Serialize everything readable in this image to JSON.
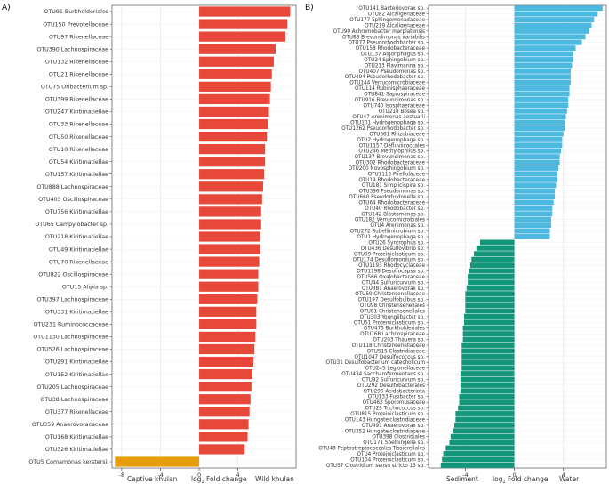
{
  "chart_data": [
    {
      "panel": "A)",
      "type": "bar",
      "orientation": "horizontal",
      "xlabel_left": "Captive khulan",
      "xlabel_mid_prefix": "log",
      "xlabel_mid_sub": "2",
      "xlabel_mid_suffix": " Fold change",
      "xlabel_right": "Wild khulan",
      "xlim": [
        -9,
        10
      ],
      "xticks": [
        -8,
        -4,
        0,
        4
      ],
      "grid": true,
      "colors": {
        "positive": "#e8483a",
        "negative": "#e89e0c"
      },
      "categories": [
        "OTU91 Burkholderiales",
        "OTU150 Prevotellaceae",
        "OTU97 Rikenellaceae",
        "OTU390 Lachnospiraceae",
        "OTU132 Rikenellaceae",
        "OTU21 Rikenellaceae",
        "OTU75 Oribacterium sp.",
        "OTU399 Rikenellaceae",
        "OTU247 Kiritimatiellae",
        "OTU33 Rikenellaceae",
        "OTU50 Rikenellaceae",
        "OTU10 Rikenellaceae",
        "OTU54 Kiritimatiellae",
        "OTU157 Kiritimatiellae",
        "OTU888 Lachnospiraceae",
        "OTU403 Oscillospiraceae",
        "OTU756 Kiritimatiellae",
        "OTU65 Campylobacter sp.",
        "OTU218 Kiritimatiellae",
        "OTU49 Kiritimatiellae",
        "OTU70 Rikenellaceae",
        "OTU822 Oscillospiraceae",
        "OTU15 Alipia sp.",
        "OTU397 Lachnospiraceae",
        "OTU331 Kiritimatiellae",
        "OTU231 Ruminococcaceae",
        "OTU1130 Lachnospiraceae",
        "OTU526 Lachnospiraceae",
        "OTU291 Kiritimatiellae",
        "OTU152 Kiritimatiellae",
        "OTU205 Lachnospiraceae",
        "OTU38 Lachnospiraceae",
        "OTU377 Rikenellaceae",
        "OTU359 Anaerovoracaceae",
        "OTU168 Kiritimatiellae",
        "OTU326 Kiritimatiellae",
        "OTU5 Comamonas kerstersii"
      ],
      "values": [
        9.4,
        9.1,
        8.9,
        7.9,
        7.7,
        7.5,
        7.4,
        7.3,
        7.2,
        7.1,
        7.0,
        6.8,
        6.8,
        6.7,
        6.6,
        6.5,
        6.4,
        6.4,
        6.3,
        6.3,
        6.2,
        6.1,
        6.1,
        6.0,
        5.9,
        5.9,
        5.8,
        5.7,
        5.6,
        5.5,
        5.4,
        5.3,
        5.2,
        5.1,
        5.0,
        4.7,
        -8.7
      ]
    },
    {
      "panel": "B)",
      "type": "bar",
      "orientation": "horizontal",
      "xlabel_left": "Sediment",
      "xlabel_mid_prefix": "log",
      "xlabel_mid_sub": "2",
      "xlabel_mid_suffix": " Fold change",
      "xlabel_right": "Water",
      "xlim": [
        -7,
        7.5
      ],
      "xticks": [
        -4,
        0,
        4
      ],
      "grid": true,
      "colors": {
        "positive": "#4db8e0",
        "negative": "#14967a"
      },
      "categories": [
        "OTU141 Bacteriovorax sp.",
        "OTU82 Alcaligenaceae",
        "OTU177 Sphingomonadaceae",
        "OTU219 Alcaligenaceae",
        "OTU90 Achromobacter marplatensis",
        "OTU88 Brevundimonas variabilis",
        "OTU77 Pseudorhodobacter sp.",
        "OTU158 Rhodobacteraceae",
        "OTU137 Algoriphagus sp.",
        "OTU24 Sphingobium sp.",
        "OTU213 Flavimarina sp.",
        "OTU407 Pseudomonas sp.",
        "OTU494 Pseudorhodobacter sp.",
        "OTU144 Verrucomicrobiaceae",
        "OTU114 Rubinisphaeraceae",
        "OTU841 Saprospiraceae",
        "OTU916 Brevundimonas sp.",
        "OTU740 Isosphaeraceae",
        "OTU218 Bosea sp.",
        "OTU47 Arenimonas aestuarii",
        "OTU101 Hydrogenophaga sp.",
        "OTU1262 Pseudorhodobacter sp.",
        "OTU661 Rhizobiaceae",
        "OTU2 Hydrogenophaga sp.",
        "OTU1157 Defluviicoccales",
        "OTU246 Methylophilus sp.",
        "OTU137 Brevundimonas sp.",
        "OTU302 Rhodobacteraceae",
        "OTU200 Novosphingobium sp.",
        "OTU1113 Pirellulaceae",
        "OTU19 Rhodobacteraceae",
        "OTU181 Simplicispira sp.",
        "OTU396 Pseudomonas sp.",
        "OTU660 Pseudorhodonella sp.",
        "OTU64 Rhodobacteraceae",
        "OTU40 Rhodobacter sp.",
        "OTU142 Blastomonas sp.",
        "OTU182 Verrucomicrobiales",
        "OTU4 Arenimonas sp.",
        "OTU272 Rubellimicrobium sp.",
        "OTU1 Hydrogenophaga sp.",
        "OTU26 Syntrophus sp.",
        "OTU436 Desulfovibrio sp.",
        "OTU99 Proteiniclasticum sp.",
        "OTU174 Desulfomonilum sp.",
        "OTU1193 Rhodocyclaceae",
        "OTU1198 Desulfocapsa sp.",
        "OTU566 Oxalobacteraceae",
        "OTU44 Sulfuricurvum sp.",
        "OTU381 Anaerovorax sp.",
        "OTU59 Christensenellaceae",
        "OTU197 Desulfobulbus sp.",
        "OTU98 Christensenellales",
        "OTU81 Christensenellales",
        "OTU303 Youngiibacter sp.",
        "OTU51 Proteiniclasticum sp.",
        "OTU475 Burkholderiales",
        "OTU768 Lachnospiraceae",
        "OTU203 Thauera sp.",
        "OTU118 Christensenellaceae",
        "OTU515 Clostridiaceae",
        "OTU1047 Desulfococcus sp.",
        "OTU31 Desulfobacterium catecholicum",
        "OTU245 Legionellaceae",
        "OTU434 Saccharofermentans sp.",
        "OTU92 Sulfuricurvum sp.",
        "OTU292 Desulfobacterales",
        "OTU295 Acidobacteriota",
        "OTU133 Fusibacter sp.",
        "OTU462 Sporomusaceae",
        "OTU29 Trichococcus sp.",
        "OTU815 Proteiniclasticum sp.",
        "OTU143 Hungateiclostridiaceae",
        "OTU491 Anaerovorax sp.",
        "OTU352 Hungateiclostridiaceae",
        "OTU398 Clostridiales",
        "OTU171 Spelhingella sp.",
        "OTU43 Peptostreptococcales-Tissierellales",
        "OTU4 Proteiniclasticum sp.",
        "OTU104 Proteiniclasticum sp.",
        "OTU57 Clostridium sensu stricto 13 sp."
      ],
      "values": [
        7.2,
        6.8,
        6.5,
        6.3,
        6.1,
        5.8,
        5.5,
        5.0,
        4.8,
        4.8,
        4.7,
        4.6,
        4.6,
        4.6,
        4.5,
        4.5,
        4.4,
        4.4,
        4.3,
        4.2,
        4.1,
        4.1,
        4.0,
        3.9,
        3.9,
        3.8,
        3.7,
        3.7,
        3.6,
        3.5,
        3.5,
        3.4,
        3.3,
        3.3,
        3.2,
        3.1,
        3.1,
        3.0,
        3.0,
        2.9,
        2.9,
        -2.8,
        -3.1,
        -3.3,
        -3.5,
        -3.6,
        -3.7,
        -3.8,
        -3.8,
        -3.9,
        -4.0,
        -4.0,
        -4.0,
        -4.0,
        -4.1,
        -4.1,
        -4.2,
        -4.2,
        -4.2,
        -4.3,
        -4.3,
        -4.3,
        -4.3,
        -4.3,
        -4.4,
        -4.4,
        -4.4,
        -4.4,
        -4.5,
        -4.5,
        -4.6,
        -4.8,
        -4.8,
        -4.9,
        -5.0,
        -5.2,
        -5.3,
        -5.6,
        -5.8,
        -5.9,
        -6.0
      ]
    }
  ]
}
